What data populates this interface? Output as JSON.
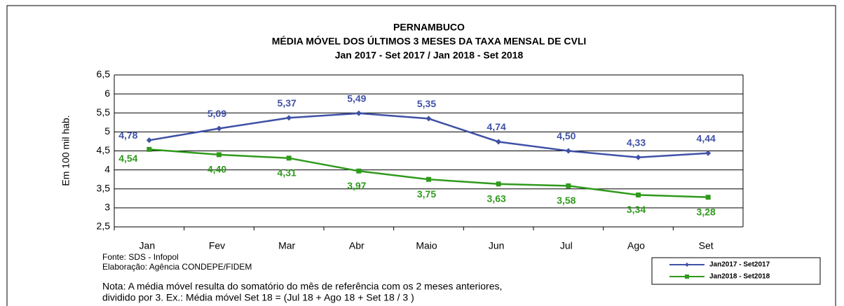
{
  "chart_data": {
    "type": "line",
    "title": [
      "PERNAMBUCO",
      "MÉDIA MÓVEL DOS ÚLTIMOS 3 MESES DA TAXA MENSAL DE CVLI",
      "Jan 2017 - Set 2017 / Jan 2018 - Set 2018"
    ],
    "ylabel": "Em 100 mil hab.",
    "categories": [
      "Jan",
      "Fev",
      "Mar",
      "Abr",
      "Maio",
      "Jun",
      "Jul",
      "Ago",
      "Set"
    ],
    "series": [
      {
        "name": "Jan2017 - Set2017",
        "color": "#3f51a6",
        "values": [
          4.78,
          5.09,
          5.37,
          5.49,
          5.35,
          4.74,
          4.5,
          4.33,
          4.44
        ],
        "value_labels": [
          "4,78",
          "5,09",
          "5,37",
          "5,49",
          "5,35",
          "4,74",
          "4,50",
          "4,33",
          "4,44"
        ]
      },
      {
        "name": "Jan2018 - Set2018",
        "color": "#2f9a1c",
        "values": [
          4.54,
          4.4,
          4.31,
          3.97,
          3.75,
          3.63,
          3.58,
          3.34,
          3.28
        ],
        "value_labels": [
          "4,54",
          "4,40",
          "4,31",
          "3,97",
          "3,75",
          "3,63",
          "3,58",
          "3,34",
          "3,28"
        ]
      }
    ],
    "ylim": [
      2.5,
      6.5
    ],
    "yticks": [
      {
        "value": 2.5,
        "label": "2,5"
      },
      3,
      {
        "value": 3.5,
        "label": "3,5"
      },
      4,
      {
        "value": 4.5,
        "label": "4,5"
      },
      5,
      {
        "value": 5.5,
        "label": "5,5"
      },
      6,
      {
        "value": 6.5,
        "label": "6,5"
      }
    ],
    "grid": true,
    "legend": "lower right",
    "annotations": [
      "Fonte: SDS - Infopol",
      "Elaboração: Agência  CONDEPE/FIDEM",
      "Nota: A média móvel resulta do somatório do mês de referência com os 2 meses anteriores,",
      "dividido por 3. Ex.: Média móvel Set 18 = (Jul 18 + Ago 18 + Set 18 / 3 )"
    ]
  }
}
